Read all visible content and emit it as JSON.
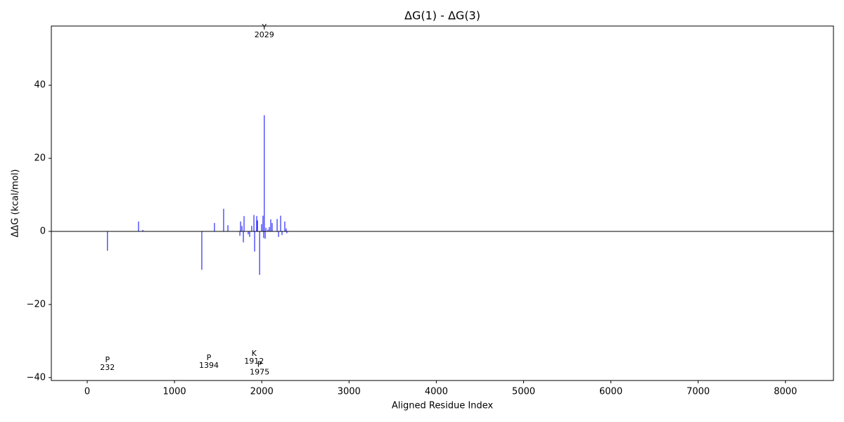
{
  "chart_data": {
    "type": "bar",
    "title": "ΔG(1) - ΔG(3)",
    "x_label": "Aligned Residue Index",
    "y_label": "ΔΔG (kcal/mol)",
    "color": "#0000ff",
    "x": [
      232,
      588,
      637,
      1313,
      1458,
      1563,
      1612,
      1749,
      1757,
      1773,
      1789,
      1797,
      1845,
      1861,
      1885,
      1910,
      1918,
      1942,
      1950,
      1975,
      1998,
      2014,
      2022,
      2029,
      2039,
      2047,
      2070,
      2087,
      2103,
      2119,
      2176,
      2192,
      2216,
      2232,
      2264,
      2280,
      2288
    ],
    "values": [
      -5.3,
      2.7,
      0.4,
      -10.5,
      2.3,
      6.2,
      1.7,
      -1.2,
      2.7,
      1.5,
      -3,
      4.2,
      -0.8,
      -1.5,
      1.5,
      4.5,
      -5.5,
      4.2,
      3,
      -11.9,
      2,
      4.3,
      -1.8,
      31.8,
      -2,
      1,
      0.5,
      1.2,
      3.3,
      2.3,
      3.4,
      -1.5,
      4.3,
      -1,
      2.7,
      0.8,
      -0.5
    ],
    "xlim": [
      -411,
      8550
    ],
    "ylim": [
      -40.8,
      56.2
    ],
    "xticks": [
      0,
      1000,
      2000,
      3000,
      4000,
      5000,
      6000,
      7000,
      8000
    ],
    "yticks": [
      {
        "value": -40,
        "label": "−40"
      },
      {
        "value": -20,
        "label": "−20"
      },
      0,
      20,
      40
    ],
    "annotations": [
      {
        "x": 232,
        "y": -35.2,
        "lines": [
          "P",
          "232"
        ]
      },
      {
        "x": 1394,
        "y": -34.6,
        "lines": [
          "P",
          "1394"
        ]
      },
      {
        "x": 1912,
        "y": -33.5,
        "lines": [
          "K",
          "1912"
        ]
      },
      {
        "x": 1975,
        "y": -36.5,
        "lines": [
          "P",
          "1975"
        ]
      },
      {
        "x": 2029,
        "y": 55.8,
        "lines": [
          "Y",
          "2029"
        ]
      }
    ]
  }
}
